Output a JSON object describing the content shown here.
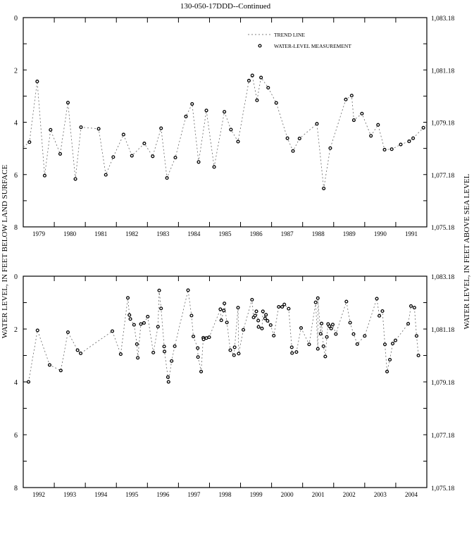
{
  "title": "130-050-17DDD--Continued",
  "left_axis_label": "WATER LEVEL, IN FEET BELOW LAND SURFACE",
  "right_axis_label": "WATER LEVEL, IN FEET ABOVE SEA LEVEL",
  "legend": {
    "trend_line": "TREND LINE",
    "measurement": "WATER-LEVEL MEASUREMENT"
  },
  "chart_data": [
    {
      "type": "line",
      "title": "130-050-17DDD--Continued",
      "ylabel": "WATER LEVEL, IN FEET BELOW LAND SURFACE",
      "y2label": "WATER LEVEL, IN FEET ABOVE SEA LEVEL",
      "xlim": [
        1979,
        1992
      ],
      "ylim": [
        0,
        8
      ],
      "y_inverted": true,
      "yticks": [
        "0",
        "2",
        "4",
        "6",
        "8"
      ],
      "y2ticks": [
        "1,083.18",
        "1,081.18",
        "1,079.18",
        "1,077.18",
        "1,075.18"
      ],
      "xtick_labels": [
        "1979",
        "1980",
        "1981",
        "1982",
        "1983",
        "1984",
        "1985",
        "1986",
        "1987",
        "1988",
        "1989",
        "1990",
        "1991"
      ],
      "legend_position": "top-center",
      "series": [
        {
          "name": "WATER-LEVEL MEASUREMENT",
          "x": [
            1979.2,
            1979.45,
            1979.69,
            1979.88,
            1980.19,
            1980.44,
            1980.68,
            1980.86,
            1981.43,
            1981.66,
            1981.9,
            1982.23,
            1982.5,
            1982.9,
            1983.17,
            1983.44,
            1983.63,
            1983.9,
            1984.24,
            1984.44,
            1984.65,
            1984.9,
            1985.15,
            1985.48,
            1985.69,
            1985.92,
            1986.27,
            1986.38,
            1986.53,
            1986.66,
            1986.89,
            1987.15,
            1987.51,
            1987.69,
            1987.9,
            1988.46,
            1988.68,
            1988.89,
            1989.39,
            1989.58,
            1989.65,
            1989.91,
            1990.2,
            1990.43,
            1990.64,
            1990.87,
            1991.16,
            1991.43,
            1991.56,
            1991.89
          ],
          "y": [
            4.76,
            2.44,
            6.04,
            4.29,
            5.21,
            3.25,
            6.17,
            4.19,
            4.25,
            6.01,
            5.33,
            4.47,
            5.28,
            4.81,
            5.3,
            4.23,
            6.13,
            5.35,
            3.78,
            3.3,
            5.52,
            3.55,
            5.71,
            3.6,
            4.28,
            4.74,
            2.41,
            2.21,
            3.16,
            2.29,
            2.68,
            3.26,
            4.61,
            5.1,
            4.62,
            4.06,
            6.53,
            4.99,
            3.13,
            2.98,
            3.92,
            3.67,
            4.52,
            4.1,
            5.05,
            5.03,
            4.85,
            4.73,
            4.61,
            4.21
          ]
        }
      ]
    },
    {
      "type": "line",
      "ylabel": "WATER LEVEL, IN FEET BELOW LAND SURFACE",
      "y2label": "WATER LEVEL, IN FEET ABOVE SEA LEVEL",
      "xlim": [
        1992,
        2005
      ],
      "ylim": [
        0,
        8
      ],
      "y_inverted": true,
      "yticks": [
        "0",
        "2",
        "4",
        "6",
        "8"
      ],
      "y2ticks": [
        "1,083.18",
        "1,081.18",
        "1,079.18",
        "1,077.18",
        "1,075.18"
      ],
      "xtick_labels": [
        "1992",
        "1993",
        "1994",
        "1995",
        "1996",
        "1997",
        "1998",
        "1999",
        "2000",
        "2001",
        "2002",
        "2003",
        "2004"
      ],
      "series": [
        {
          "name": "WATER-LEVEL MEASUREMENT",
          "x": [
            1992.17,
            1992.46,
            1992.85,
            1993.21,
            1993.44,
            1993.75,
            1993.85,
            1994.87,
            1995.14,
            1995.37,
            1995.42,
            1995.45,
            1995.57,
            1995.66,
            1995.69,
            1995.79,
            1995.89,
            1996.01,
            1996.19,
            1996.34,
            1996.38,
            1996.44,
            1996.54,
            1996.55,
            1996.66,
            1996.68,
            1996.78,
            1996.88,
            1997.31,
            1997.42,
            1997.48,
            1997.62,
            1997.63,
            1997.73,
            1997.8,
            1997.81,
            1997.9,
            1997.99,
            1998.35,
            1998.38,
            1998.46,
            1998.48,
            1998.56,
            1998.67,
            1998.79,
            1998.81,
            1998.92,
            1998.94,
            1999.09,
            1999.37,
            1999.42,
            1999.47,
            1999.51,
            1999.57,
            1999.58,
            1999.69,
            1999.72,
            1999.79,
            1999.82,
            1999.87,
            1999.97,
            2000.07,
            2000.23,
            2000.34,
            2000.41,
            2000.55,
            2000.65,
            2000.66,
            2000.8,
            2000.95,
            2001.21,
            2001.42,
            2001.49,
            2001.49,
            2001.58,
            2001.61,
            2001.67,
            2001.73,
            2001.78,
            2001.82,
            2001.86,
            2001.92,
            2001.97,
            2002.07,
            2002.41,
            2002.53,
            2002.64,
            2002.76,
            2003.0,
            2003.39,
            2003.47,
            2003.57,
            2003.65,
            2003.72,
            2003.81,
            2003.9,
            2003.99,
            2004.4,
            2004.49,
            2004.6,
            2004.67,
            2004.73
          ],
          "y": [
            4.0,
            2.05,
            3.36,
            3.57,
            2.12,
            2.8,
            2.92,
            2.08,
            2.95,
            0.82,
            1.47,
            1.62,
            1.84,
            2.57,
            3.09,
            1.81,
            1.77,
            1.53,
            2.89,
            1.91,
            0.54,
            1.22,
            2.66,
            2.85,
            3.82,
            4.0,
            3.21,
            2.65,
            0.53,
            1.49,
            2.28,
            2.72,
            3.06,
            3.61,
            2.33,
            2.39,
            2.34,
            2.31,
            1.25,
            1.67,
            1.3,
            1.03,
            1.75,
            2.8,
            2.99,
            2.69,
            1.19,
            2.93,
            2.03,
            0.89,
            1.56,
            1.49,
            1.33,
            1.68,
            1.92,
            1.98,
            1.33,
            1.6,
            1.46,
            1.69,
            1.85,
            2.25,
            1.16,
            1.16,
            1.07,
            1.23,
            2.69,
            2.91,
            2.87,
            1.96,
            2.58,
            0.99,
            2.75,
            0.83,
            2.18,
            1.79,
            2.65,
            3.04,
            2.3,
            1.81,
            1.89,
            1.98,
            1.83,
            2.19,
            0.96,
            1.76,
            2.19,
            2.57,
            2.26,
            0.85,
            1.5,
            1.32,
            2.58,
            3.61,
            3.16,
            2.55,
            2.43,
            1.8,
            1.13,
            1.19,
            2.26,
            3.0
          ]
        }
      ]
    }
  ]
}
